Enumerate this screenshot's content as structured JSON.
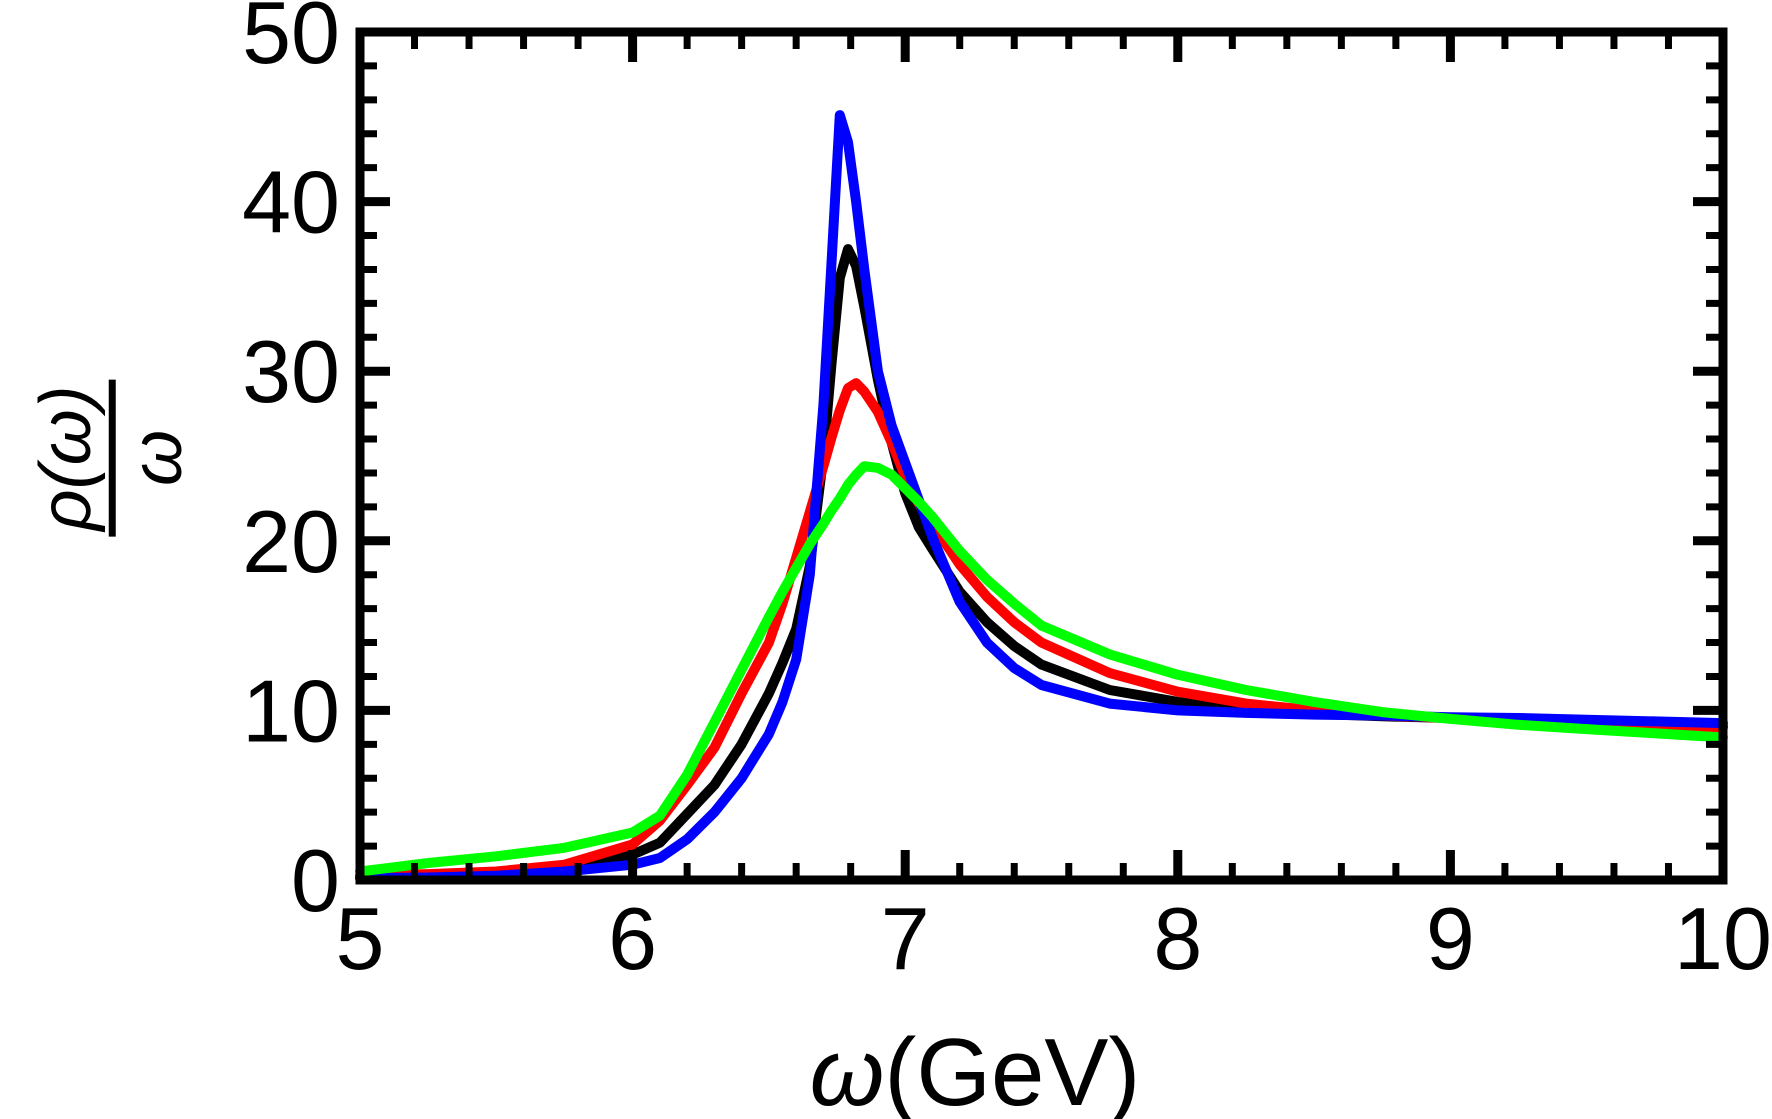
{
  "figure": {
    "background": "#ffffff"
  },
  "axis_labels": {
    "x_symbol": "ω",
    "x_unit": "(GeV)",
    "y_numerator": "ρ(ω)",
    "y_denominator": "ω"
  },
  "chart_data": {
    "type": "line",
    "title": "",
    "xlabel": "ω(GeV)",
    "ylabel": "ρ(ω)/ω",
    "xlim": [
      5,
      10
    ],
    "ylim": [
      0,
      50
    ],
    "grid": false,
    "legend": "none",
    "frame": true,
    "tick_style": "inward-mirrored",
    "xticks": {
      "major": [
        5,
        6,
        7,
        8,
        9,
        10
      ],
      "labels": [
        "5",
        "6",
        "7",
        "8",
        "9",
        "10"
      ],
      "minor_step": 0.2
    },
    "yticks": {
      "major": [
        0,
        10,
        20,
        30,
        40,
        50
      ],
      "labels": [
        "0",
        "10",
        "20",
        "30",
        "40",
        "50"
      ],
      "minor_step": 2
    },
    "x": [
      5.0,
      5.25,
      5.5,
      5.75,
      6.0,
      6.1,
      6.2,
      6.3,
      6.4,
      6.5,
      6.55,
      6.6,
      6.65,
      6.7,
      6.73,
      6.76,
      6.79,
      6.82,
      6.85,
      6.9,
      6.95,
      7.0,
      7.05,
      7.1,
      7.2,
      7.3,
      7.4,
      7.5,
      7.75,
      8.0,
      8.25,
      8.5,
      8.75,
      9.0,
      9.25,
      9.5,
      9.75,
      10.0
    ],
    "series": [
      {
        "name": "curve-black",
        "color": "#000000",
        "peak": {
          "x": 6.78,
          "y": 37.2
        },
        "values": [
          0.15,
          0.25,
          0.4,
          0.8,
          1.5,
          2.2,
          3.9,
          5.6,
          8.0,
          11.0,
          12.8,
          14.8,
          18.5,
          25.0,
          30.5,
          35.5,
          37.2,
          36.2,
          33.8,
          29.5,
          25.8,
          22.8,
          20.8,
          19.5,
          17.0,
          15.2,
          13.8,
          12.7,
          11.2,
          10.5,
          10.0,
          9.8,
          9.65,
          9.55,
          9.45,
          9.35,
          9.2,
          9.05
        ]
      },
      {
        "name": "curve-red",
        "color": "#ff0000",
        "peak": {
          "x": 6.8,
          "y": 29.3
        },
        "values": [
          0.25,
          0.35,
          0.5,
          0.9,
          2.1,
          3.5,
          5.6,
          7.8,
          11.0,
          14.0,
          16.3,
          19.0,
          21.7,
          24.4,
          26.1,
          27.7,
          29.0,
          29.3,
          28.8,
          27.6,
          25.8,
          23.8,
          22.2,
          21.0,
          18.6,
          16.7,
          15.2,
          14.0,
          12.2,
          11.1,
          10.4,
          10.0,
          9.7,
          9.55,
          9.4,
          9.3,
          9.15,
          9.0
        ]
      },
      {
        "name": "curve-blue",
        "color": "#0000ff",
        "peak": {
          "x": 6.76,
          "y": 45.1
        },
        "values": [
          0.1,
          0.15,
          0.25,
          0.5,
          0.9,
          1.3,
          2.4,
          4.0,
          6.0,
          8.6,
          10.5,
          13.0,
          18.0,
          28.0,
          36.5,
          45.1,
          43.5,
          40.0,
          36.0,
          30.0,
          26.8,
          24.6,
          22.4,
          20.2,
          16.4,
          14.0,
          12.5,
          11.5,
          10.4,
          10.0,
          9.85,
          9.75,
          9.7,
          9.6,
          9.55,
          9.45,
          9.35,
          9.25
        ]
      },
      {
        "name": "curve-green",
        "color": "#00ff00",
        "peak": {
          "x": 6.85,
          "y": 24.4
        },
        "values": [
          0.5,
          1.0,
          1.4,
          1.9,
          2.8,
          3.8,
          6.2,
          9.3,
          12.4,
          15.5,
          17.0,
          18.4,
          19.8,
          21.0,
          21.8,
          22.5,
          23.3,
          23.9,
          24.4,
          24.3,
          23.9,
          23.1,
          22.3,
          21.4,
          19.4,
          17.7,
          16.3,
          15.0,
          13.3,
          12.1,
          11.2,
          10.5,
          9.9,
          9.5,
          9.15,
          8.9,
          8.65,
          8.4
        ]
      }
    ]
  }
}
